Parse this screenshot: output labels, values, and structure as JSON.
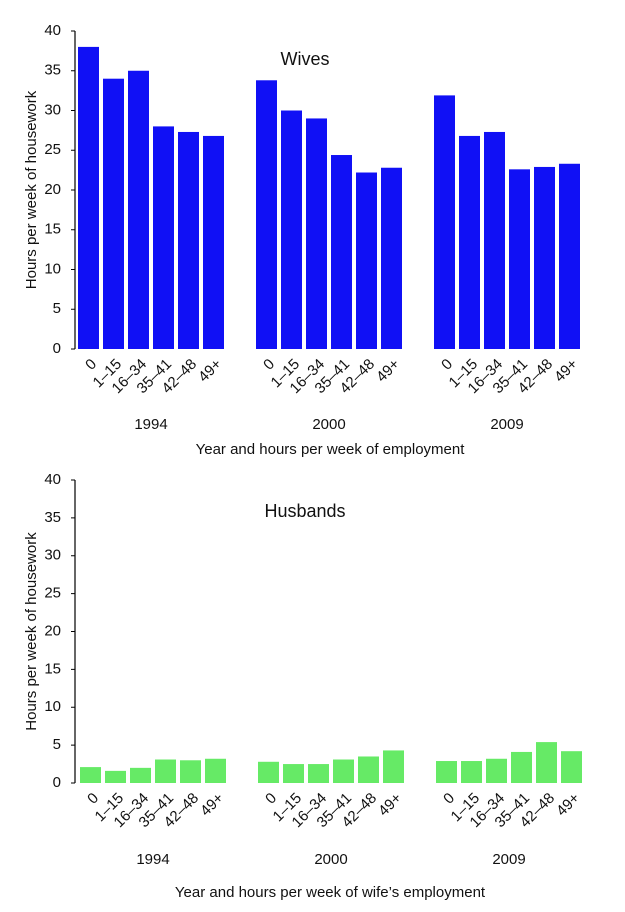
{
  "chart_data": [
    {
      "type": "bar",
      "title": "Wives",
      "ylabel": "Hours per week of housework",
      "xlabel": "Year and hours per week of employment",
      "categories": [
        "0",
        "1–15",
        "16–34",
        "35–41",
        "42–48",
        "49+"
      ],
      "series": [
        {
          "name": "1994",
          "values": [
            38,
            34,
            35,
            28,
            27.3,
            26.8
          ]
        },
        {
          "name": "2000",
          "values": [
            33.8,
            30,
            29,
            24.4,
            22.2,
            22.8
          ]
        },
        {
          "name": "2009",
          "values": [
            31.9,
            26.8,
            27.3,
            22.6,
            22.9,
            23.3
          ]
        }
      ],
      "color": "#1010f5",
      "ylim": [
        0,
        40
      ],
      "yticks": [
        0,
        5,
        10,
        15,
        20,
        25,
        30,
        35,
        40
      ]
    },
    {
      "type": "bar",
      "title": "Husbands",
      "ylabel": "Hours per week of housework",
      "xlabel": "Year and hours per week of wife’s employment",
      "categories": [
        "0",
        "1–15",
        "16–34",
        "35–41",
        "42–48",
        "49+"
      ],
      "series": [
        {
          "name": "1994",
          "values": [
            2.1,
            1.6,
            2.0,
            3.1,
            3.0,
            3.2
          ]
        },
        {
          "name": "2000",
          "values": [
            2.8,
            2.5,
            2.5,
            3.1,
            3.5,
            4.3
          ]
        },
        {
          "name": "2009",
          "values": [
            2.9,
            2.9,
            3.2,
            4.1,
            5.4,
            4.2
          ]
        }
      ],
      "color": "#66ea66",
      "ylim": [
        0,
        40
      ],
      "yticks": [
        0,
        5,
        10,
        15,
        20,
        25,
        30,
        35,
        40
      ]
    }
  ]
}
